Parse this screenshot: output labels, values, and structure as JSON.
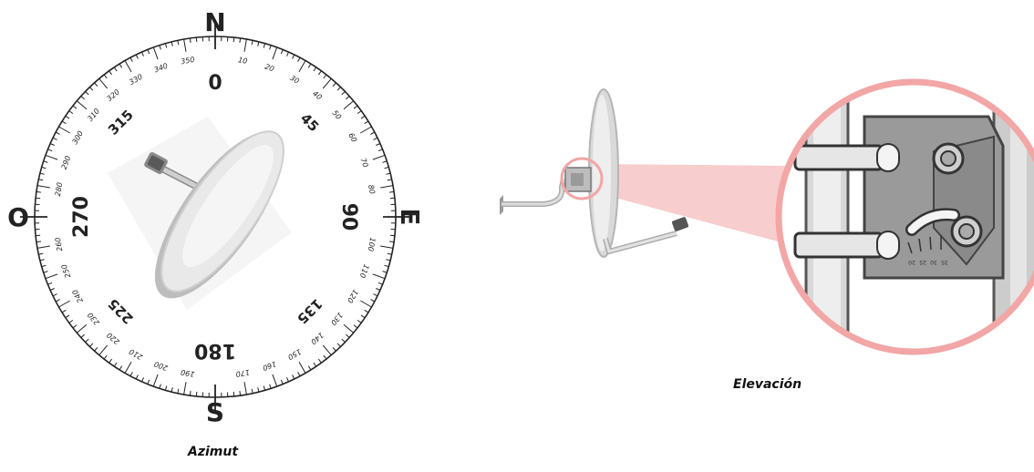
{
  "azimuth_panel": {
    "caption": "Azimut",
    "cardinals": {
      "north": "N",
      "east": "E",
      "south": "S",
      "west": "O"
    },
    "major_labels": [
      {
        "deg": 0,
        "text": "0"
      },
      {
        "deg": 45,
        "text": "45"
      },
      {
        "deg": 90,
        "text": "90"
      },
      {
        "deg": 135,
        "text": "135"
      },
      {
        "deg": 180,
        "text": "180"
      },
      {
        "deg": 225,
        "text": "225"
      },
      {
        "deg": 270,
        "text": "270"
      },
      {
        "deg": 315,
        "text": "315"
      }
    ],
    "minor_labels": [
      "10",
      "20",
      "30",
      "40",
      "50",
      "60",
      "70",
      "80",
      "100",
      "110",
      "120",
      "130",
      "140",
      "150",
      "160",
      "170",
      "190",
      "200",
      "210",
      "220",
      "230",
      "240",
      "250",
      "260",
      "280",
      "290",
      "300",
      "310",
      "320",
      "330",
      "340",
      "350"
    ],
    "dish_heading_deg": 45
  },
  "elevation_panel": {
    "caption": "Elevación",
    "scale_labels": [
      "20",
      "25",
      "30",
      "35"
    ]
  },
  "colors": {
    "ink": "#222222",
    "dish": "#e6e6e6",
    "magnifier": "#f2a6a6",
    "beam": "#f7c4c4",
    "bracket": "#9a9a9a"
  }
}
